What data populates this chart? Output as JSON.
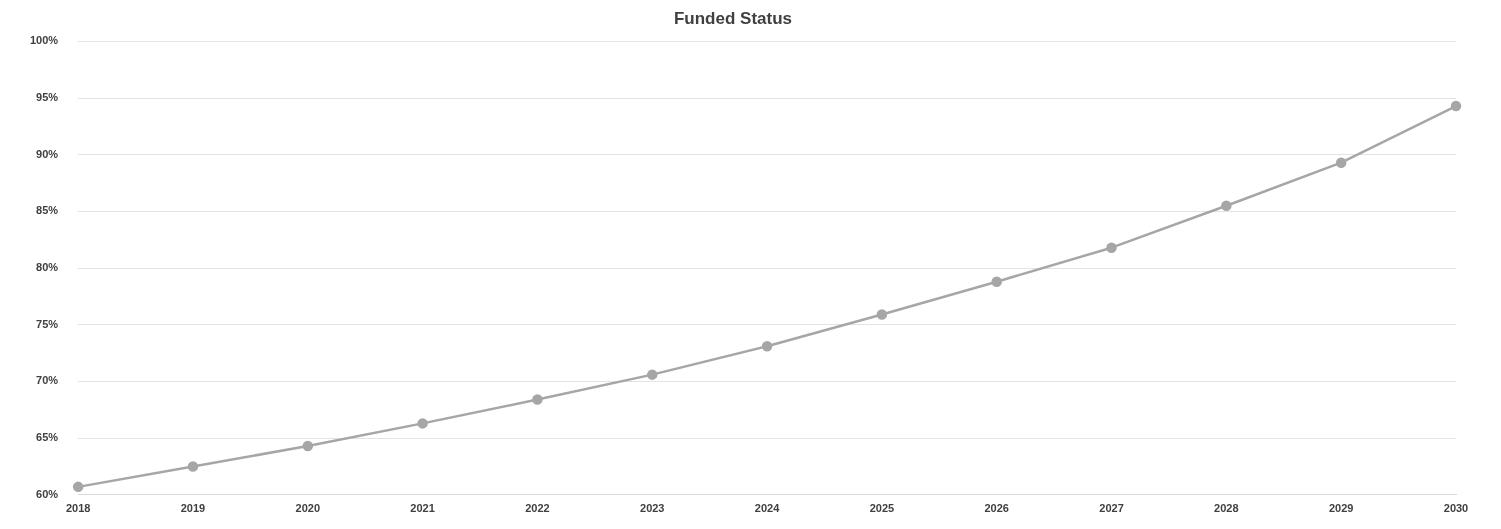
{
  "chart_data": {
    "type": "line",
    "title": "Funded Status",
    "categories": [
      "2018",
      "2019",
      "2020",
      "2021",
      "2022",
      "2023",
      "2024",
      "2025",
      "2026",
      "2027",
      "2028",
      "2029",
      "2030"
    ],
    "series": [
      {
        "color": "#a6a6a6",
        "values": [
          60.7,
          62.5,
          64.3,
          66.3,
          68.4,
          70.6,
          73.1,
          75.9,
          78.8,
          81.8,
          85.5,
          89.3,
          94.3
        ]
      }
    ],
    "ylim": [
      60,
      100
    ],
    "yticks": [
      {
        "value": 60,
        "label": "60%"
      },
      {
        "value": 65,
        "label": "65%"
      },
      {
        "value": 70,
        "label": "70%"
      },
      {
        "value": 75,
        "label": "75%"
      },
      {
        "value": 80,
        "label": "80%"
      },
      {
        "value": 85,
        "label": "85%"
      },
      {
        "value": 90,
        "label": "90%"
      },
      {
        "value": 95,
        "label": "95%"
      },
      {
        "value": 100,
        "label": "100%"
      }
    ],
    "grid": "y",
    "marker": "circle",
    "line_style": "solid",
    "legend": false
  }
}
